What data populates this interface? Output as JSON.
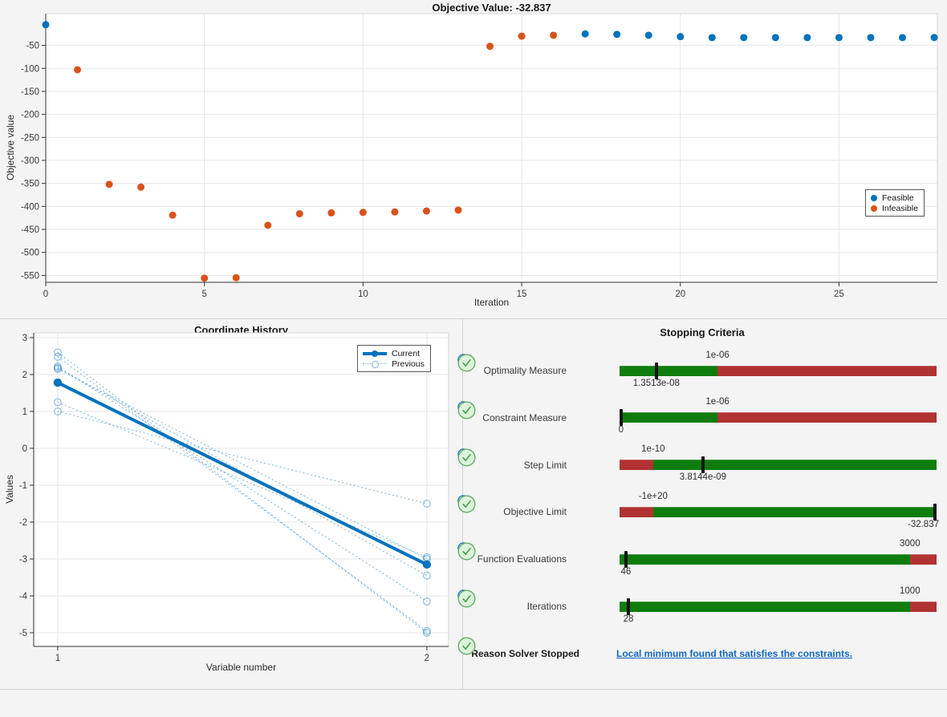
{
  "window": {
    "background": "#f4f4f4"
  },
  "chart_data": [
    {
      "type": "scatter",
      "title": "Objective Value: -32.837",
      "xlabel": "Iteration",
      "ylabel": "Objective value",
      "xlim": [
        0,
        28.1
      ],
      "ylim": [
        -565,
        19
      ],
      "xticks": [
        0,
        5,
        10,
        15,
        20,
        25
      ],
      "yticks": [
        -550,
        -500,
        -450,
        -400,
        -350,
        -300,
        -250,
        -200,
        -150,
        -100,
        -50
      ],
      "grid": true,
      "legend_position": "right",
      "legend": [
        {
          "label": "Feasible",
          "marker": "dot",
          "color": "#0072BD"
        },
        {
          "label": "Infeasible",
          "marker": "dot",
          "color": "#D95319"
        }
      ],
      "series": [
        {
          "name": "Feasible",
          "color": "#0072BD",
          "points": [
            [
              0,
              -5
            ],
            [
              17,
              -25
            ],
            [
              18,
              -26
            ],
            [
              19,
              -28
            ],
            [
              20,
              -31
            ],
            [
              21,
              -33
            ],
            [
              22,
              -33
            ],
            [
              23,
              -33
            ],
            [
              24,
              -33
            ],
            [
              25,
              -33
            ],
            [
              26,
              -33
            ],
            [
              27,
              -33
            ],
            [
              28,
              -32.837
            ]
          ]
        },
        {
          "name": "Infeasible",
          "color": "#D95319",
          "points": [
            [
              1,
              -103
            ],
            [
              2,
              -352
            ],
            [
              3,
              -358
            ],
            [
              4,
              -419
            ],
            [
              5,
              -556
            ],
            [
              6,
              -555
            ],
            [
              7,
              -441
            ],
            [
              8,
              -416
            ],
            [
              9,
              -414
            ],
            [
              10,
              -413
            ],
            [
              11,
              -412
            ],
            [
              12,
              -410
            ],
            [
              13,
              -408
            ],
            [
              14,
              -52
            ],
            [
              15,
              -30
            ],
            [
              16,
              -28
            ]
          ]
        }
      ]
    },
    {
      "type": "line",
      "title": "Coordinate History",
      "xlabel": "Variable number",
      "ylabel": "Values",
      "xlim": [
        0.935,
        2.059
      ],
      "ylim": [
        -5.37,
        3.13
      ],
      "xticks": [
        1,
        2
      ],
      "yticks": [
        -5,
        -4,
        -3,
        -2,
        -1,
        0,
        1,
        2,
        3
      ],
      "grid": true,
      "legend_position": "top-right",
      "legend": [
        {
          "label": "Current",
          "marker": "line-dot",
          "color": "#0072BD"
        },
        {
          "label": "Previous",
          "marker": "dotted-circle",
          "color": "#76b4e0"
        }
      ],
      "current": {
        "x": [
          1,
          2
        ],
        "y": [
          1.78,
          -3.15
        ],
        "color": "#0072BD"
      },
      "previous": {
        "color": "rgba(0,114,189,0.45)",
        "pairs": [
          [
            2.6,
            -5.0
          ],
          [
            2.48,
            -4.95
          ],
          [
            2.22,
            -4.15
          ],
          [
            2.18,
            -3.45
          ],
          [
            2.15,
            -3.0
          ],
          [
            1.25,
            -2.95
          ],
          [
            1.0,
            -1.5
          ]
        ]
      }
    }
  ],
  "stopping_criteria": {
    "title": "Stopping Criteria",
    "colors": {
      "pass": "#0e7d0e",
      "fail": "#b13232",
      "marker": "#141414"
    },
    "rows": [
      {
        "label": "Optimality Measure",
        "threshold_label": "1e-06",
        "threshold_pos": 0.309,
        "marker_pos": 0.116,
        "value_label": "1.3513e-08",
        "value_align": "center",
        "segments": [
          {
            "state": "pass",
            "to": 0.309
          },
          {
            "state": "fail",
            "to": 1
          }
        ]
      },
      {
        "label": "Constraint Measure",
        "threshold_label": "1e-06",
        "threshold_pos": 0.309,
        "marker_pos": 0.004,
        "value_label": "0",
        "value_align": "left",
        "segments": [
          {
            "state": "pass",
            "to": 0.309
          },
          {
            "state": "fail",
            "to": 1
          }
        ]
      },
      {
        "label": "Step Limit",
        "threshold_label": "1e-10",
        "threshold_pos": 0.106,
        "marker_pos": 0.263,
        "value_label": "3.8144e-09",
        "value_align": "center",
        "segments": [
          {
            "state": "fail",
            "to": 0.106
          },
          {
            "state": "pass",
            "to": 1
          }
        ]
      },
      {
        "label": "Objective Limit",
        "threshold_label": "-1e+20",
        "threshold_pos": 0.106,
        "marker_pos": 0.995,
        "value_label": "-32.837",
        "value_align": "right",
        "segments": [
          {
            "state": "fail",
            "to": 0.106
          },
          {
            "state": "pass",
            "to": 1
          }
        ]
      },
      {
        "label": "Function Evaluations",
        "threshold_label": "3000",
        "threshold_pos": 0.916,
        "marker_pos": 0.02,
        "value_label": "46",
        "value_align": "center",
        "segments": [
          {
            "state": "pass",
            "to": 0.916
          },
          {
            "state": "fail",
            "to": 1
          }
        ]
      },
      {
        "label": "Iterations",
        "threshold_label": "1000",
        "threshold_pos": 0.916,
        "marker_pos": 0.028,
        "value_label": "28",
        "value_align": "center",
        "segments": [
          {
            "state": "pass",
            "to": 0.916
          },
          {
            "state": "fail",
            "to": 1
          }
        ]
      }
    ],
    "reason": {
      "label": "Reason Solver Stopped",
      "link_text": "Local minimum found that satisfies the constraints."
    }
  }
}
